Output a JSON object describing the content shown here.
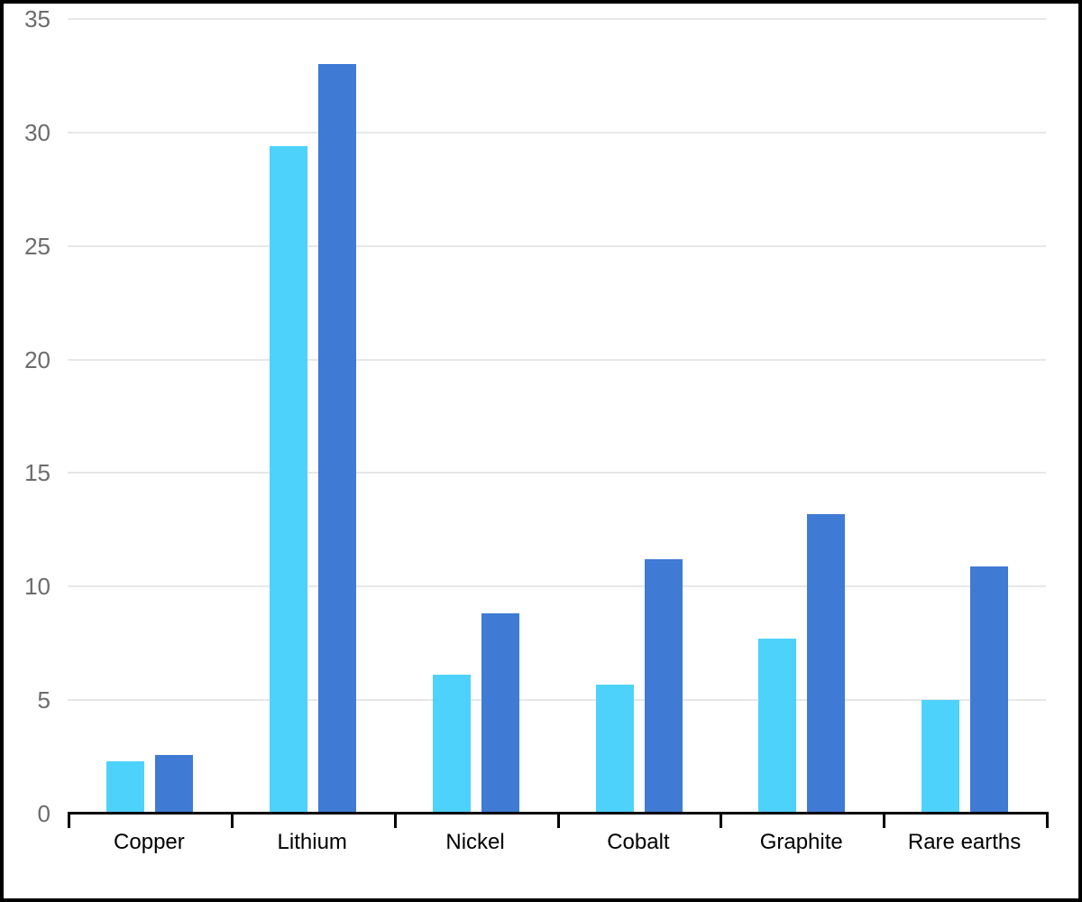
{
  "chart_data": {
    "type": "bar",
    "title": "",
    "xlabel": "",
    "ylabel": "",
    "categories": [
      "Copper",
      "Lithium",
      "Nickel",
      "Cobalt",
      "Graphite",
      "Rare earths"
    ],
    "series": [
      {
        "name": "series-1-light-blue",
        "color": "#4dd2fb",
        "values": [
          2.3,
          29.4,
          6.1,
          5.7,
          7.7,
          5.0
        ]
      },
      {
        "name": "series-2-dark-blue",
        "color": "#3f7ad4",
        "values": [
          2.6,
          33.0,
          8.8,
          11.2,
          13.2,
          10.9
        ]
      }
    ],
    "ylim": [
      0,
      35
    ],
    "ytick_step": 5,
    "ytick_labels": [
      "0",
      "5",
      "10",
      "15",
      "20",
      "25",
      "30",
      "35"
    ],
    "grid": "horizontal",
    "legend_position": "none"
  },
  "colors": {
    "background": "#ffffff",
    "frame_border": "#000000",
    "gridline": "#e7e7e7",
    "axis_line": "#000000",
    "y_tick_label": "#6b6b6b",
    "x_category_label": "#000000"
  }
}
